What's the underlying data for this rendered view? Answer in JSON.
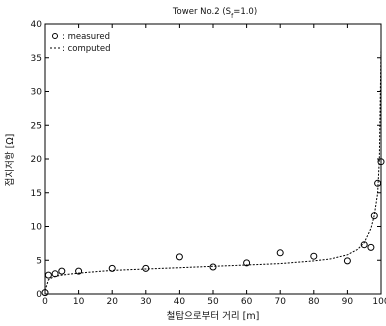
{
  "chart_data": {
    "type": "scatter",
    "title": "Tower No.2 (S",
    "title_sub": "f",
    "title_suffix": "=1.0)",
    "xlabel": "철탑으로부터 거리 [m]",
    "ylabel": "접지저항 [Ω]",
    "xlim": [
      0,
      100
    ],
    "ylim": [
      0,
      40
    ],
    "xticks": [
      0,
      10,
      20,
      30,
      40,
      50,
      60,
      70,
      80,
      90,
      100
    ],
    "yticks": [
      0,
      5,
      10,
      15,
      20,
      25,
      30,
      35,
      40
    ],
    "grid": false,
    "legend_position": "top-left",
    "legend": [
      {
        "marker": "o",
        "label": ": measured"
      },
      {
        "marker": "--",
        "label": ": computed"
      }
    ],
    "series": [
      {
        "name": "measured",
        "kind": "points",
        "x": [
          0,
          1,
          3,
          5,
          10,
          20,
          30,
          40,
          50,
          60,
          70,
          80,
          90,
          95,
          97,
          98,
          99,
          100
        ],
        "y": [
          0.2,
          2.8,
          3.0,
          3.4,
          3.4,
          3.8,
          3.8,
          5.5,
          4.0,
          4.6,
          6.1,
          5.6,
          4.9,
          7.3,
          6.9,
          11.6,
          16.4,
          19.6
        ]
      },
      {
        "name": "computed",
        "kind": "line",
        "x": [
          0,
          1,
          2,
          3,
          5,
          10,
          15,
          20,
          30,
          40,
          50,
          60,
          70,
          80,
          85,
          90,
          93,
          95,
          97,
          98,
          99,
          99.5,
          100
        ],
        "y": [
          0.5,
          2.1,
          2.4,
          2.6,
          2.8,
          3.1,
          3.3,
          3.5,
          3.7,
          3.9,
          4.1,
          4.3,
          4.5,
          4.9,
          5.2,
          5.8,
          6.6,
          7.6,
          9.7,
          11.7,
          15.0,
          20.0,
          36.5
        ]
      }
    ]
  }
}
